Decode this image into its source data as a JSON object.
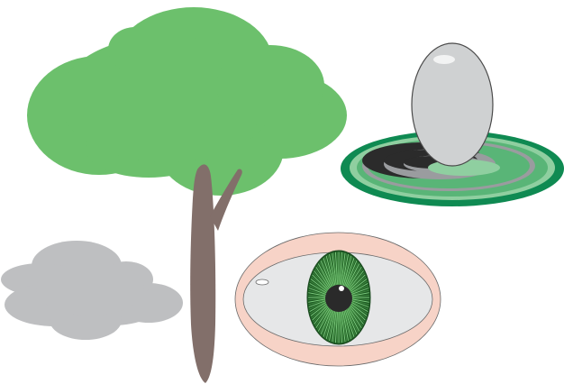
{
  "illustration": {
    "objects": [
      "tree",
      "cloud",
      "egg-on-rings",
      "eye"
    ]
  },
  "colors": {
    "background": "#ffffff",
    "foliage": "#6cc06c",
    "trunk": "#826f6a",
    "cloud": "#bebfc1",
    "ring_dark": "#0f8a52",
    "ring_mid": "#59b577",
    "ring_light": "#8fcfa0",
    "ring_gray": "#9a9c9f",
    "hole": "#2b2b2b",
    "egg": "#cfd1d2",
    "egg_outline": "#4a4a4a",
    "eye_rim": "#f7d3c7",
    "eye_white": "#e6e7e8",
    "iris": "#3f8a3f",
    "iris_dark": "#1f5a25",
    "pupil": "#2a2a2a"
  },
  "icons": {
    "tree": "tree-icon",
    "cloud": "cloud-icon",
    "egg": "egg-icon",
    "eye": "eye-icon"
  }
}
